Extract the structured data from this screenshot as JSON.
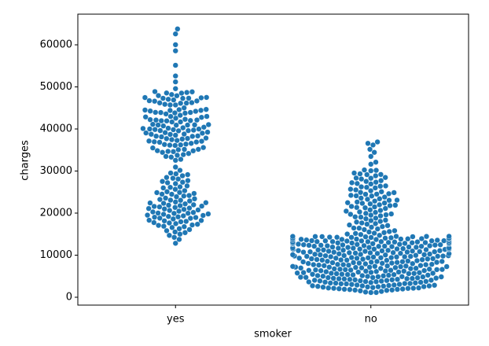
{
  "chart_data": {
    "type": "swarm",
    "x_label": "smoker",
    "y_label": "charges",
    "categories": [
      "yes",
      "no"
    ],
    "color": "#1f77b4",
    "ylim": [
      -1870,
      67290
    ],
    "yticks": [
      0,
      10000,
      20000,
      30000,
      40000,
      50000,
      60000
    ],
    "values": [
      [
        12829,
        13747,
        14235,
        14711,
        15006,
        15359,
        15518,
        15817,
        16085,
        16297,
        16577,
        16776,
        16884,
        17085,
        17179,
        17352,
        17496,
        17663,
        17748,
        17942,
        18033,
        18157,
        18246,
        18310,
        18608,
        18767,
        18804,
        18955,
        19023,
        19107,
        19199,
        19350,
        19444,
        19515,
        19719,
        19798,
        19933,
        19964,
        20009,
        20149,
        20277,
        20462,
        20630,
        20745,
        20878,
        20984,
        21082,
        21195,
        21348,
        21472,
        21595,
        21659,
        21774,
        21880,
        21978,
        22192,
        22331,
        22412,
        22478,
        22636,
        22881,
        23045,
        23082,
        23244,
        23401,
        23568,
        23887,
        24059,
        24180,
        24476,
        24513,
        24667,
        24869,
        24915,
        25081,
        25333,
        25656,
        25992,
        26126,
        26236,
        26467,
        27000,
        27218,
        27346,
        27533,
        27724,
        28101,
        28287,
        28468,
        28868,
        29141,
        29330,
        29523,
        30166,
        30942,
        32548,
        32787,
        33307,
        33475,
        33750,
        33900,
        34166,
        34439,
        34617,
        34672,
        34806,
        34838,
        35069,
        35147,
        35160,
        35491,
        35585,
        36085,
        36149,
        36219,
        36307,
        36397,
        36580,
        36837,
        36898,
        36950,
        37079,
        37133,
        37270,
        37465,
        37607,
        37701,
        37742,
        37829,
        38126,
        38245,
        38282,
        38344,
        38511,
        38709,
        38746,
        38792,
        38998,
        39047,
        39125,
        39241,
        39556,
        39597,
        39611,
        39727,
        39836,
        39871,
        39983,
        40003,
        40103,
        40182,
        40273,
        40419,
        40720,
        40904,
        40932,
        40941,
        40974,
        41034,
        41097,
        41661,
        41676,
        41919,
        41949,
        41999,
        42112,
        42124,
        42211,
        42303,
        42560,
        42760,
        42856,
        42969,
        42983,
        43254,
        43578,
        43753,
        43813,
        43896,
        43921,
        43943,
        44202,
        44260,
        44400,
        44423,
        44501,
        44585,
        44641,
        45008,
        45702,
        45710,
        45863,
        46113,
        46151,
        46200,
        46255,
        46599,
        46661,
        46718,
        46889,
        47055,
        47269,
        47291,
        47305,
        47403,
        47462,
        47496,
        47896,
        47928,
        48173,
        48517,
        48549,
        48675,
        48824,
        48885,
        49577,
        51195,
        52591,
        55135,
        58571,
        60021,
        62593,
        63770
      ],
      [
        1121,
        1137,
        1242,
        1391,
        1526,
        1631,
        1702,
        1727,
        1832,
        1880,
        1906,
        1964,
        2020,
        2104,
        2128,
        2154,
        2203,
        2221,
        2302,
        2395,
        2457,
        2497,
        2523,
        2585,
        2640,
        2690,
        2709,
        2731,
        2801,
        2855,
        2904,
        2913,
        3046,
        3077,
        3172,
        3201,
        3260,
        3279,
        3353,
        3392,
        3410,
        3500,
        3556,
        3597,
        3645,
        3693,
        3732,
        3757,
        3847,
        3877,
        3925,
        3981,
        4040,
        4058,
        4133,
        4149,
        4237,
        4260,
        4340,
        4391,
        4415,
        4463,
        4500,
        4544,
        4618,
        4661,
        4687,
        4719,
        4762,
        4830,
        4846,
        4883,
        4906,
        4949,
        5002,
        5080,
        5125,
        5138,
        5227,
        5257,
        5312,
        5375,
        5400,
        5458,
        5478,
        5594,
        5615,
        5662,
        5699,
        5708,
        5757,
        5836,
        5855,
        5910,
        5969,
        5989,
        6059,
        6117,
        6198,
        6203,
        6250,
        6313,
        6334,
        6389,
        6414,
        6457,
        6496,
        6555,
        6571,
        6610,
        6664,
        6686,
        6746,
        6799,
        6849,
        6877,
        6948,
        6986,
        7045,
        7077,
        7133,
        7147,
        7160,
        7261,
        7281,
        7325,
        7345,
        7419,
        7441,
        7512,
        7537,
        7623,
        7640,
        7727,
        7731,
        7740,
        7804,
        7821,
        7935,
        7985,
        8026,
        8068,
        8116,
        8124,
        8211,
        8233,
        8280,
        8302,
        8342,
        8411,
        8457,
        8515,
        8520,
        8547,
        8604,
        8688,
        8765,
        8823,
        8827,
        8871,
        8932,
        8968,
        9048,
        9101,
        9144,
        9182,
        9264,
        9283,
        9288,
        9375,
        9386,
        9411,
        9432,
        9541,
        9563,
        9617,
        9625,
        9704,
        9722,
        9748,
        9788,
        9800,
        9855,
        9875,
        9910,
        9964,
        10043,
        10085,
        10107,
        10115,
        10197,
        10214,
        10264,
        10325,
        10355,
        10407,
        10436,
        10493,
        10560,
        10577,
        10601,
        10704,
        10713,
        10736,
        10797,
        10806,
        10848,
        10923,
        10942,
        10977,
        11033,
        11073,
        11082,
        11150,
        11165,
        11244,
        11253,
        11305,
        11365,
        11381,
        11396,
        11436,
        11454,
        11482,
        11512,
        11520,
        11552,
        11657,
        11658,
        11737,
        11743,
        11830,
        11842,
        11881,
        11931,
        11944,
        12032,
        12094,
        12105,
        12124,
        12142,
        12222,
        12233,
        12265,
        12347,
        12363,
        12404,
        12430,
        12475,
        12479,
        12557,
        12592,
        12629,
        12644,
        12646,
        12730,
        12741,
        12797,
        12815,
        12890,
        12925,
        12949,
        12950,
        12982,
        13012,
        13019,
        13041,
        13129,
        13143,
        13204,
        13217,
        13224,
        13228,
        13352,
        13393,
        13405,
        13415,
        13429,
        13451,
        13462,
        13555,
        13607,
        13635,
        13725,
        13747,
        13770,
        13822,
        13831,
        13880,
        13887,
        13919,
        13974,
        13981,
        14001,
        14007,
        14043,
        14133,
        14210,
        14235,
        14256,
        14283,
        14358,
        14394,
        14410,
        14426,
        14449,
        14455,
        14474,
        14478,
        14711,
        14901,
        15019,
        15161,
        15230,
        15359,
        15518,
        15612,
        15820,
        16069,
        16232,
        16420,
        16450,
        16657,
        16796,
        17043,
        17178,
        17361,
        17496,
        17663,
        17878,
        18033,
        18218,
        18328,
        18648,
        18806,
        19040,
        19107,
        19350,
        19515,
        19594,
        19719,
        19798,
        19933,
        20167,
        20277,
        20462,
        20630,
        20773,
        21098,
        21259,
        21348,
        21472,
        21595,
        21774,
        21880,
        21984,
        22192,
        22331,
        22395,
        22478,
        22636,
        22856,
        23045,
        23082,
        23288,
        23401,
        23568,
        23807,
        24059,
        24106,
        24227,
        24476,
        24513,
        24603,
        24869,
        24915,
        25081,
        25309,
        25517,
        25678,
        25992,
        26126,
        26236,
        26392,
        26467,
        26926,
        27037,
        27218,
        27346,
        27533,
        27724,
        28101,
        28287,
        28340,
        28468,
        28868,
        29141,
        29186,
        29330,
        29523,
        30063,
        30166,
        30259,
        31620,
        32108,
        33471,
        34439,
        35160,
        36197,
        36580,
        36910
      ]
    ]
  }
}
